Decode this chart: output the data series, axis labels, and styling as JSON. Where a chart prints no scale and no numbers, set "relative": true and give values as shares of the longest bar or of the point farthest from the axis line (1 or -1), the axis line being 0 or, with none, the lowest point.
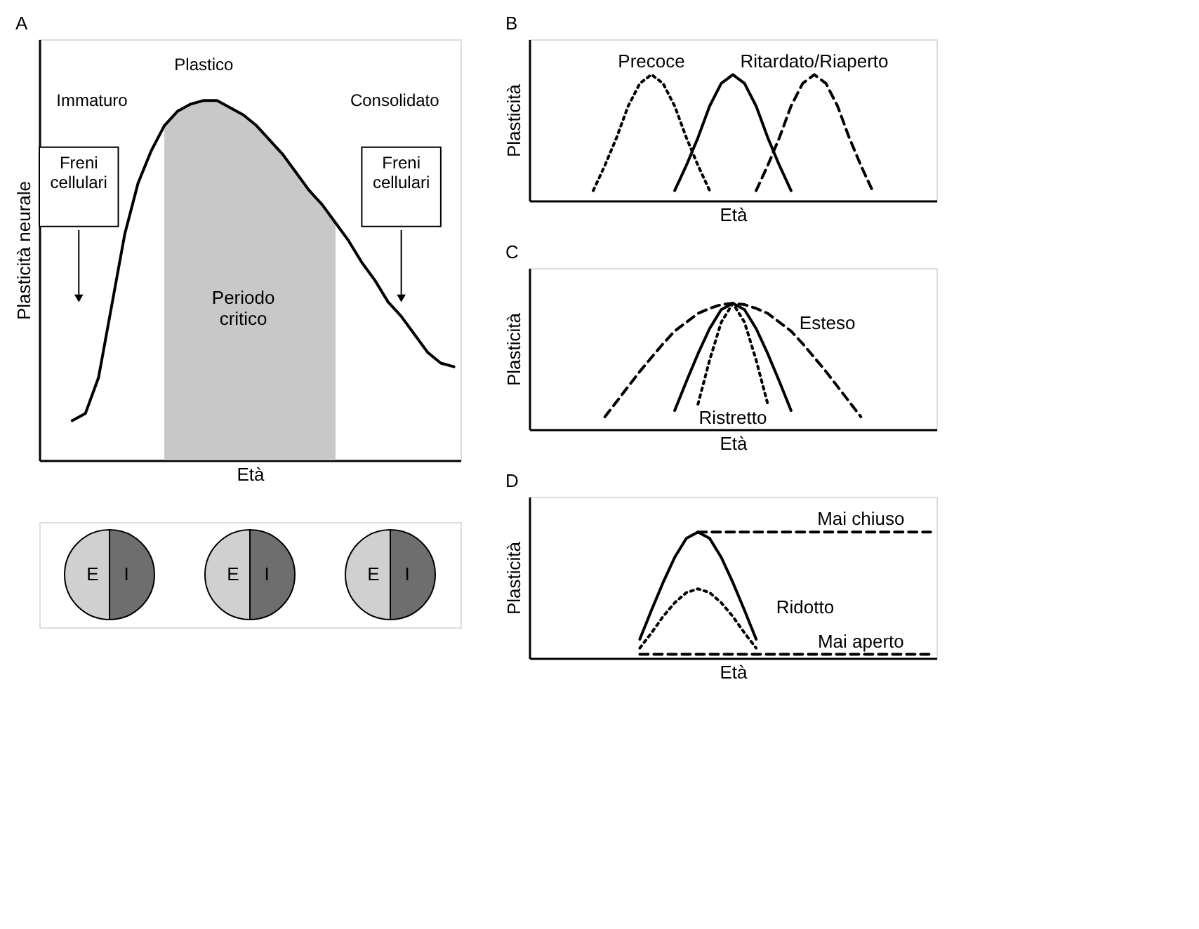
{
  "chart_data": [
    {
      "type": "line",
      "title": "A",
      "xlabel": "Età",
      "ylabel": "Plasticità neurale",
      "relative": true,
      "legend": false,
      "line_style": "solid",
      "categories": [
        null,
        null,
        null,
        null,
        null,
        null,
        null,
        null,
        null,
        null,
        null,
        null,
        null,
        null,
        null,
        null,
        null,
        null,
        null,
        null,
        null,
        null,
        null,
        null,
        null,
        null,
        null,
        null,
        null,
        null,
        null,
        null
      ],
      "series": [
        {
          "color": "#000000",
          "values": [
            null,
            null,
            0.11,
            0.13,
            0.23,
            0.43,
            0.63,
            0.77,
            0.86,
            0.93,
            0.97,
            0.99,
            1.0,
            1.0,
            0.98,
            0.96,
            0.93,
            0.89,
            0.85,
            0.8,
            0.75,
            0.71,
            0.66,
            0.61,
            0.55,
            0.5,
            0.44,
            0.4,
            0.35,
            0.3,
            0.27,
            0.26
          ]
        },
        {
          "name": "Periodo critico",
          "type": "area",
          "color": "#c8c8c8",
          "values": [
            null,
            null,
            null,
            null,
            null,
            null,
            null,
            null,
            null,
            0.93,
            0.97,
            0.99,
            1.0,
            1.0,
            0.98,
            0.96,
            0.93,
            0.89,
            0.85,
            0.8,
            0.75,
            0.71,
            0.66,
            null,
            null,
            null,
            null,
            null,
            null,
            null,
            null,
            null
          ]
        }
      ],
      "annotations": [
        "Immaturo",
        "Plastico",
        "Consolidato",
        "Freni cellulari",
        "Freni cellulari"
      ]
    },
    {
      "type": "other",
      "annotations": [
        "E",
        "I",
        "E",
        "I",
        "E",
        "I"
      ]
    },
    {
      "type": "line",
      "title": "B",
      "xlabel": "Età",
      "ylabel": "Plasticità",
      "relative": true,
      "legend": false,
      "categories": [
        null,
        null,
        null,
        null,
        null,
        null,
        null,
        null,
        null,
        null,
        null,
        null,
        null,
        null,
        null,
        null,
        null,
        null,
        null,
        null,
        null,
        null,
        null,
        null,
        null,
        null,
        null,
        null,
        null,
        null,
        null,
        null,
        null,
        null,
        null
      ],
      "series": [
        {
          "name": "Precoce",
          "color": "#000000",
          "line_style": "dotted",
          "values": [
            null,
            null,
            null,
            null,
            null,
            0.08,
            0.28,
            0.5,
            0.75,
            0.93,
            1,
            0.93,
            0.75,
            0.5,
            0.28,
            0.08,
            null,
            null,
            null,
            null,
            null,
            null,
            null,
            null,
            null,
            null,
            null,
            null,
            null,
            null,
            null,
            null,
            null,
            null,
            null
          ]
        },
        {
          "color": "#000000",
          "line_style": "solid",
          "values": [
            null,
            null,
            null,
            null,
            null,
            null,
            null,
            null,
            null,
            null,
            null,
            null,
            0.08,
            0.28,
            0.5,
            0.75,
            0.93,
            1,
            0.93,
            0.75,
            0.5,
            0.28,
            0.08,
            null,
            null,
            null,
            null,
            null,
            null,
            null,
            null,
            null,
            null,
            null,
            null
          ]
        },
        {
          "name": "Ritardato/Riaperto",
          "color": "#000000",
          "line_style": "dashed",
          "values": [
            null,
            null,
            null,
            null,
            null,
            null,
            null,
            null,
            null,
            null,
            null,
            null,
            null,
            null,
            null,
            null,
            null,
            null,
            null,
            0.08,
            0.28,
            0.5,
            0.75,
            0.93,
            1,
            0.93,
            0.75,
            0.5,
            0.28,
            0.08,
            null,
            null,
            null,
            null,
            null
          ]
        }
      ]
    },
    {
      "type": "line",
      "title": "C",
      "xlabel": "Età",
      "ylabel": "Plasticità",
      "relative": true,
      "legend": false,
      "categories": [
        null,
        null,
        null,
        null,
        null,
        null,
        null,
        null,
        null,
        null,
        null,
        null,
        null,
        null,
        null,
        null,
        null,
        null,
        null,
        null,
        null,
        null,
        null,
        null,
        null,
        null,
        null,
        null,
        null,
        null,
        null,
        null,
        null,
        null,
        null
      ],
      "series": [
        {
          "color": "#000000",
          "line_style": "solid",
          "values": [
            null,
            null,
            null,
            null,
            null,
            null,
            null,
            null,
            null,
            null,
            null,
            null,
            0.15,
            0.38,
            0.6,
            0.8,
            0.95,
            1,
            0.95,
            0.8,
            0.6,
            0.38,
            0.15,
            null,
            null,
            null,
            null,
            null,
            null,
            null,
            null,
            null,
            null,
            null,
            null
          ]
        },
        {
          "name": "Esteso",
          "color": "#000000",
          "line_style": "dashed",
          "values": [
            null,
            null,
            null,
            null,
            null,
            null,
            0.1,
            0.22,
            0.34,
            0.46,
            0.57,
            0.68,
            0.78,
            0.85,
            0.92,
            0.96,
            0.99,
            1,
            0.99,
            0.96,
            0.92,
            0.85,
            0.78,
            0.68,
            0.57,
            0.46,
            0.34,
            0.22,
            0.1,
            null,
            null,
            null,
            null,
            null,
            null
          ]
        },
        {
          "name": "Ristretto",
          "color": "#000000",
          "line_style": "dotted",
          "values": [
            null,
            null,
            null,
            null,
            null,
            null,
            null,
            null,
            null,
            null,
            null,
            null,
            null,
            null,
            0.2,
            0.55,
            0.85,
            1,
            0.85,
            0.55,
            0.2,
            null,
            null,
            null,
            null,
            null,
            null,
            null,
            null,
            null,
            null,
            null,
            null,
            null,
            null
          ]
        }
      ]
    },
    {
      "type": "line",
      "title": "D",
      "xlabel": "Età",
      "ylabel": "Plasticità",
      "relative": true,
      "legend": false,
      "categories": [
        null,
        null,
        null,
        null,
        null,
        null,
        null,
        null,
        null,
        null,
        null,
        null,
        null,
        null,
        null,
        null,
        null,
        null,
        null,
        null,
        null,
        null,
        null,
        null,
        null,
        null,
        null,
        null,
        null,
        null,
        null,
        null,
        null,
        null,
        null
      ],
      "series": [
        {
          "color": "#000000",
          "line_style": "solid",
          "values": [
            null,
            null,
            null,
            null,
            null,
            null,
            null,
            null,
            null,
            0.15,
            0.38,
            0.6,
            0.8,
            0.95,
            1,
            0.95,
            0.8,
            0.6,
            0.38,
            0.15,
            null,
            null,
            null,
            null,
            null,
            null,
            null,
            null,
            null,
            null,
            null,
            null,
            null,
            null,
            null
          ]
        },
        {
          "name": "Ridotto",
          "color": "#000000",
          "line_style": "dotted",
          "values": [
            null,
            null,
            null,
            null,
            null,
            null,
            null,
            null,
            null,
            0.08,
            0.2,
            0.33,
            0.44,
            0.52,
            0.55,
            0.52,
            0.44,
            0.33,
            0.2,
            0.08,
            null,
            null,
            null,
            null,
            null,
            null,
            null,
            null,
            null,
            null,
            null,
            null,
            null,
            null,
            null
          ]
        },
        {
          "name": "Mai chiuso",
          "color": "#000000",
          "line_style": "dashed",
          "values": [
            null,
            null,
            null,
            null,
            null,
            null,
            null,
            null,
            null,
            null,
            null,
            null,
            null,
            null,
            1,
            1,
            1,
            1,
            1,
            1,
            1,
            1,
            1,
            1,
            1,
            1,
            1,
            1,
            1,
            1,
            1,
            1,
            1,
            1,
            1
          ]
        },
        {
          "name": "Mai aperto",
          "color": "#000000",
          "line_style": "dashed",
          "values": [
            null,
            null,
            null,
            null,
            null,
            null,
            null,
            null,
            null,
            0.03,
            0.03,
            0.03,
            0.03,
            0.03,
            0.03,
            0.03,
            0.03,
            0.03,
            0.03,
            0.03,
            0.03,
            0.03,
            0.03,
            0.03,
            0.03,
            0.03,
            0.03,
            0.03,
            0.03,
            0.03,
            0.03,
            0.03,
            0.03,
            0.03,
            0.03
          ]
        }
      ]
    }
  ]
}
